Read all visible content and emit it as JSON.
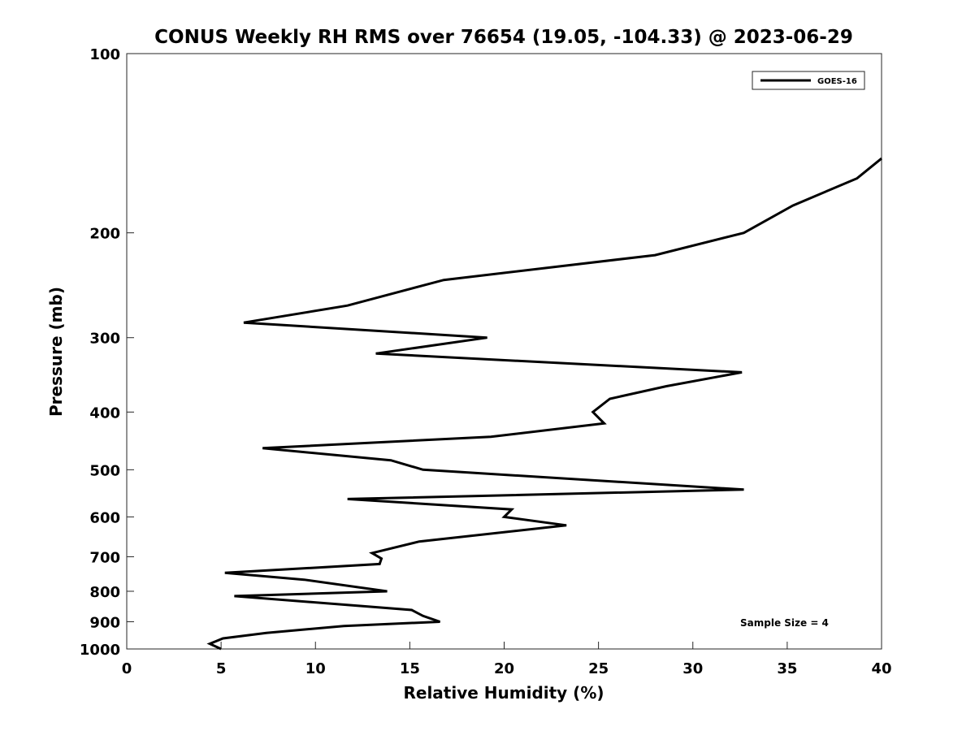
{
  "chart_data": {
    "type": "line",
    "title": "CONUS Weekly RH RMS over 76654 (19.05, -104.33) @ 2023-06-29",
    "xlabel": "Relative Humidity (%)",
    "ylabel": "Pressure (mb)",
    "xlim": [
      0,
      40
    ],
    "ylim": [
      100,
      1000
    ],
    "yscale": "log",
    "y_reversed": true,
    "grid": false,
    "legend_position": "top-right",
    "x_ticks": [
      0,
      5,
      10,
      15,
      20,
      25,
      30,
      35,
      40
    ],
    "y_ticks": [
      100,
      200,
      300,
      400,
      500,
      600,
      700,
      800,
      900,
      1000
    ],
    "series": [
      {
        "name": "GOES-16",
        "color": "#000000",
        "points": [
          {
            "x": 40.0,
            "y": 150
          },
          {
            "x": 38.7,
            "y": 162
          },
          {
            "x": 35.3,
            "y": 180
          },
          {
            "x": 32.7,
            "y": 200
          },
          {
            "x": 28.0,
            "y": 218
          },
          {
            "x": 16.8,
            "y": 240
          },
          {
            "x": 11.7,
            "y": 265
          },
          {
            "x": 6.2,
            "y": 283
          },
          {
            "x": 19.1,
            "y": 300
          },
          {
            "x": 13.2,
            "y": 319
          },
          {
            "x": 32.6,
            "y": 343
          },
          {
            "x": 28.6,
            "y": 362
          },
          {
            "x": 25.6,
            "y": 380
          },
          {
            "x": 24.7,
            "y": 400
          },
          {
            "x": 25.3,
            "y": 418
          },
          {
            "x": 19.3,
            "y": 440
          },
          {
            "x": 7.2,
            "y": 460
          },
          {
            "x": 14.0,
            "y": 482
          },
          {
            "x": 15.7,
            "y": 500
          },
          {
            "x": 32.7,
            "y": 540
          },
          {
            "x": 11.7,
            "y": 560
          },
          {
            "x": 20.4,
            "y": 583
          },
          {
            "x": 20.0,
            "y": 600
          },
          {
            "x": 23.3,
            "y": 620
          },
          {
            "x": 15.5,
            "y": 660
          },
          {
            "x": 13.0,
            "y": 690
          },
          {
            "x": 13.5,
            "y": 705
          },
          {
            "x": 13.4,
            "y": 720
          },
          {
            "x": 5.2,
            "y": 745
          },
          {
            "x": 9.4,
            "y": 765
          },
          {
            "x": 13.8,
            "y": 800
          },
          {
            "x": 5.7,
            "y": 815
          },
          {
            "x": 15.1,
            "y": 860
          },
          {
            "x": 15.7,
            "y": 880
          },
          {
            "x": 16.6,
            "y": 900
          },
          {
            "x": 11.5,
            "y": 915
          },
          {
            "x": 7.4,
            "y": 940
          },
          {
            "x": 5.1,
            "y": 960
          },
          {
            "x": 4.4,
            "y": 980
          },
          {
            "x": 5.0,
            "y": 1000
          }
        ]
      }
    ],
    "annotations": [
      {
        "text": "Sample Size = 4",
        "position": "bottom-right"
      }
    ]
  }
}
